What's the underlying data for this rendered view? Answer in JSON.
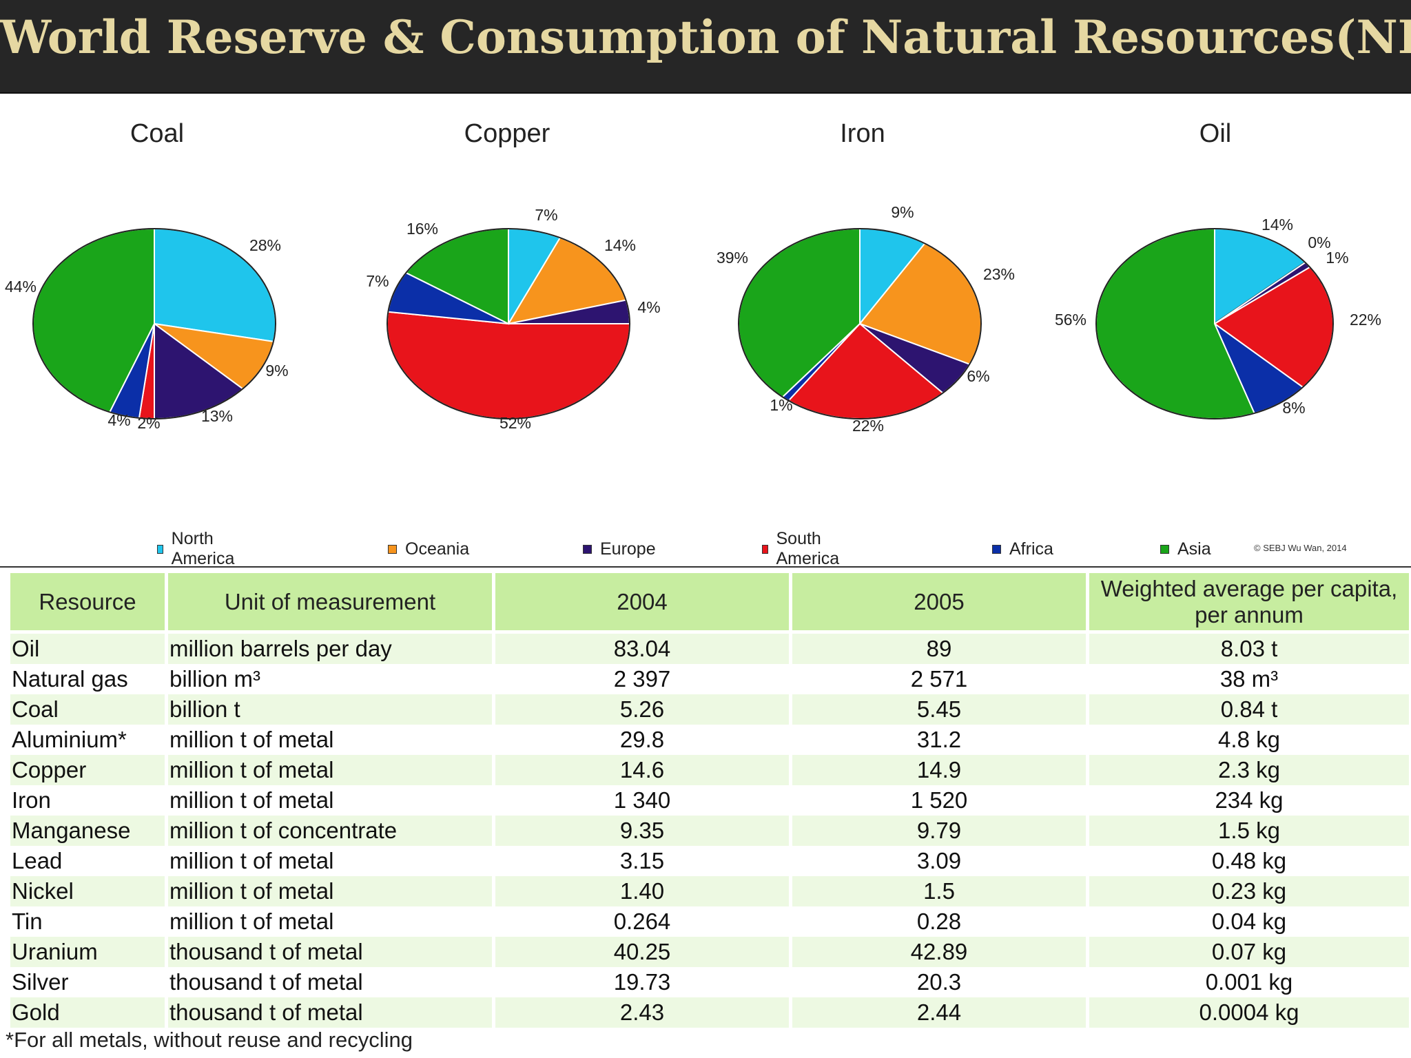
{
  "slide": {
    "title": "World Reserve & Consumption of Natural Resources(NR)"
  },
  "legend": {
    "items": [
      {
        "label": "North America",
        "color": "#1fc5ec"
      },
      {
        "label": "Oceania",
        "color": "#f7941d"
      },
      {
        "label": "Europe",
        "color": "#2d1470"
      },
      {
        "label": "South America",
        "color": "#e8141b"
      },
      {
        "label": "Africa",
        "color": "#0b2fa8"
      },
      {
        "label": "Asia",
        "color": "#1aa51a"
      }
    ],
    "copyright": "© SEBJ Wu Wan, 2014"
  },
  "chart_data": [
    {
      "type": "pie",
      "title": "Coal",
      "slices": [
        {
          "region": "North America",
          "value": 28,
          "label": "28%"
        },
        {
          "region": "Oceania",
          "value": 9,
          "label": "9%"
        },
        {
          "region": "Europe",
          "value": 13,
          "label": "13%"
        },
        {
          "region": "South America",
          "value": 2,
          "label": "2%"
        },
        {
          "region": "Africa",
          "value": 4,
          "label": "4%"
        },
        {
          "region": "Asia",
          "value": 44,
          "label": "44%"
        }
      ]
    },
    {
      "type": "pie",
      "title": "Copper",
      "slices": [
        {
          "region": "North America",
          "value": 7,
          "label": "7%"
        },
        {
          "region": "Oceania",
          "value": 14,
          "label": "14%"
        },
        {
          "region": "Europe",
          "value": 4,
          "label": "4%"
        },
        {
          "region": "South America",
          "value": 52,
          "label": "52%"
        },
        {
          "region": "Africa",
          "value": 7,
          "label": "7%"
        },
        {
          "region": "Asia",
          "value": 16,
          "label": "16%"
        }
      ]
    },
    {
      "type": "pie",
      "title": "Iron",
      "slices": [
        {
          "region": "North America",
          "value": 9,
          "label": "9%"
        },
        {
          "region": "Oceania",
          "value": 23,
          "label": "23%"
        },
        {
          "region": "Europe",
          "value": 6,
          "label": "6%"
        },
        {
          "region": "South America",
          "value": 22,
          "label": "22%"
        },
        {
          "region": "Africa",
          "value": 1,
          "label": "1%"
        },
        {
          "region": "Asia",
          "value": 39,
          "label": "39%"
        }
      ]
    },
    {
      "type": "pie",
      "title": "Oil",
      "slices": [
        {
          "region": "North America",
          "value": 14,
          "label": "14%"
        },
        {
          "region": "Oceania",
          "value": 0,
          "label": "0%"
        },
        {
          "region": "Europe",
          "value": 1,
          "label": "1%"
        },
        {
          "region": "South America",
          "value": 22,
          "label": "22%"
        },
        {
          "region": "Africa",
          "value": 8,
          "label": "8%"
        },
        {
          "region": "Asia",
          "value": 56,
          "label": "56%"
        }
      ]
    },
    {
      "type": "table",
      "headers": [
        "Resource",
        "Unit of measurement",
        "2004",
        "2005",
        "Weighted average per capita, per annum"
      ],
      "rows": [
        [
          "Oil",
          "million barrels per day",
          "83.04",
          "89",
          "8.03 t"
        ],
        [
          "Natural gas",
          "billion m³",
          "2 397",
          "2 571",
          "38 m³"
        ],
        [
          "Coal",
          "billion t",
          "5.26",
          "5.45",
          "0.84 t"
        ],
        [
          "Aluminium*",
          "million t of metal",
          "29.8",
          "31.2",
          "4.8 kg"
        ],
        [
          "Copper",
          "million t of metal",
          "14.6",
          "14.9",
          "2.3 kg"
        ],
        [
          "Iron",
          "million t of metal",
          "1 340",
          "1 520",
          "234 kg"
        ],
        [
          "Manganese",
          "million t of concentrate",
          "9.35",
          "9.79",
          "1.5 kg"
        ],
        [
          "Lead",
          "million t of metal",
          "3.15",
          "3.09",
          "0.48 kg"
        ],
        [
          "Nickel",
          "million t of metal",
          "1.40",
          "1.5",
          "0.23 kg"
        ],
        [
          "Tin",
          "million t of metal",
          "0.264",
          "0.28",
          "0.04 kg"
        ],
        [
          "Uranium",
          "thousand t of metal",
          "40.25",
          "42.89",
          "0.07 kg"
        ],
        [
          "Silver",
          "thousand t of metal",
          "19.73",
          "20.3",
          "0.001 kg"
        ],
        [
          "Gold",
          "thousand t of metal",
          "2.43",
          "2.44",
          "0.0004 kg"
        ]
      ],
      "footnote": "*For all metals, without reuse and recycling"
    }
  ]
}
